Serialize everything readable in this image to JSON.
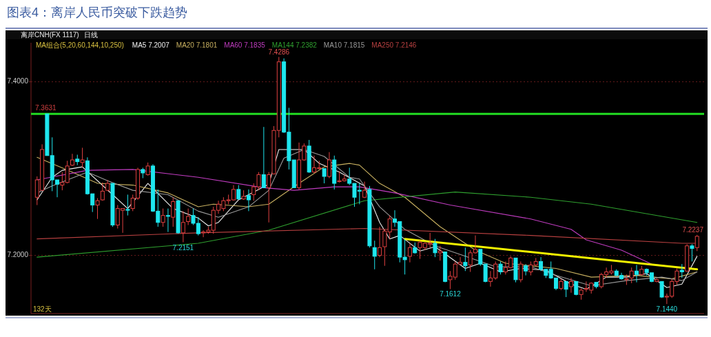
{
  "chart_data": {
    "type": "candlestick",
    "title": "图表4：离岸人民币突破下跌趋势",
    "categories": [
      null,
      null,
      null,
      null,
      null,
      null,
      null,
      null,
      null,
      null,
      null,
      null,
      null,
      null,
      null,
      null,
      null,
      null,
      null,
      null,
      null,
      null,
      null,
      null,
      null,
      null,
      null,
      null,
      null,
      null,
      null,
      null,
      null,
      null,
      null,
      null,
      null,
      null,
      null,
      null,
      null,
      null,
      null,
      null,
      null,
      null,
      null,
      null,
      null,
      null,
      null,
      null,
      null,
      null,
      null,
      null,
      null,
      null,
      null,
      null,
      null,
      null,
      null,
      null,
      null,
      null,
      null,
      null,
      null,
      null,
      null,
      null,
      null,
      null,
      null,
      null,
      null,
      null,
      null,
      null,
      null,
      null,
      null,
      null,
      null,
      null,
      null,
      null,
      null,
      null,
      null,
      null,
      null,
      null,
      null,
      null,
      null,
      null,
      null,
      null,
      null,
      null,
      null,
      null,
      null,
      null,
      null,
      null,
      null,
      null,
      null,
      null,
      null,
      null,
      null,
      null,
      null,
      null,
      null,
      null,
      null,
      null,
      null,
      null,
      null,
      null,
      null,
      null,
      null,
      null,
      null,
      null
    ],
    "ohlc": [
      [
        7.267,
        7.291,
        7.258,
        7.287
      ],
      [
        7.275,
        7.328,
        7.275,
        7.322
      ],
      [
        7.3631,
        7.3631,
        7.315,
        7.315
      ],
      [
        7.315,
        7.336,
        7.274,
        7.287
      ],
      [
        7.287,
        7.287,
        7.267,
        7.282
      ],
      [
        7.281,
        7.296,
        7.275,
        7.284
      ],
      [
        7.284,
        7.309,
        7.283,
        7.303
      ],
      [
        7.304,
        7.317,
        7.303,
        7.31
      ],
      [
        7.311,
        7.316,
        7.304,
        7.308
      ],
      [
        7.307,
        7.324,
        7.301,
        7.31
      ],
      [
        7.309,
        7.313,
        7.27,
        7.271
      ],
      [
        7.271,
        7.271,
        7.25,
        7.258
      ],
      [
        7.258,
        7.266,
        7.242,
        7.263
      ],
      [
        7.264,
        7.284,
        7.263,
        7.274
      ],
      [
        7.275,
        7.287,
        7.274,
        7.283
      ],
      [
        7.283,
        7.283,
        7.233,
        7.235
      ],
      [
        7.235,
        7.258,
        7.231,
        7.254
      ],
      [
        7.252,
        7.254,
        7.226,
        7.254
      ],
      [
        7.253,
        7.27,
        7.246,
        7.252
      ],
      [
        7.254,
        7.27,
        7.251,
        7.266
      ],
      [
        7.266,
        7.301,
        7.264,
        7.299
      ],
      [
        7.299,
        7.301,
        7.289,
        7.295
      ],
      [
        7.293,
        7.307,
        7.292,
        7.303
      ],
      [
        7.303,
        7.305,
        7.25,
        7.251
      ],
      [
        7.251,
        7.276,
        7.233,
        7.238
      ],
      [
        7.238,
        7.254,
        7.233,
        7.246
      ],
      [
        7.246,
        7.254,
        7.227,
        7.245
      ],
      [
        7.244,
        7.267,
        7.233,
        7.262
      ],
      [
        7.263,
        7.263,
        7.225,
        7.226
      ],
      [
        7.226,
        7.251,
        7.2151,
        7.238
      ],
      [
        7.239,
        7.254,
        7.235,
        7.245
      ],
      [
        7.246,
        7.254,
        7.235,
        7.237
      ],
      [
        7.237,
        7.244,
        7.223,
        7.225
      ],
      [
        7.226,
        7.229,
        7.221,
        7.227
      ],
      [
        7.227,
        7.233,
        7.225,
        7.229
      ],
      [
        7.229,
        7.256,
        7.225,
        7.252
      ],
      [
        7.252,
        7.263,
        7.248,
        7.259
      ],
      [
        7.254,
        7.267,
        7.251,
        7.263
      ],
      [
        7.263,
        7.27,
        7.259,
        7.264
      ],
      [
        7.264,
        7.281,
        7.263,
        7.276
      ],
      [
        7.276,
        7.281,
        7.264,
        7.265
      ],
      [
        7.265,
        7.275,
        7.264,
        7.268
      ],
      [
        7.269,
        7.276,
        7.251,
        7.264
      ],
      [
        7.27,
        7.283,
        7.263,
        7.279
      ],
      [
        7.279,
        7.296,
        7.275,
        7.293
      ],
      [
        7.293,
        7.348,
        7.278,
        7.278
      ],
      [
        7.278,
        7.296,
        7.238,
        7.293
      ],
      [
        7.294,
        7.349,
        7.293,
        7.344
      ],
      [
        7.344,
        7.4286,
        7.336,
        7.423
      ],
      [
        7.423,
        7.427,
        7.341,
        7.342
      ],
      [
        7.342,
        7.37,
        7.299,
        7.309
      ],
      [
        7.31,
        7.31,
        7.278,
        7.278
      ],
      [
        7.278,
        7.33,
        7.276,
        7.31
      ],
      [
        7.31,
        7.329,
        7.309,
        7.326
      ],
      [
        7.326,
        7.333,
        7.295,
        7.296
      ],
      [
        7.296,
        7.315,
        7.295,
        7.301
      ],
      [
        7.3,
        7.309,
        7.299,
        7.301
      ],
      [
        7.3,
        7.3,
        7.283,
        7.291
      ],
      [
        7.291,
        7.319,
        7.289,
        7.31
      ],
      [
        7.31,
        7.315,
        7.276,
        7.283
      ],
      [
        7.285,
        7.297,
        7.284,
        7.286
      ],
      [
        7.286,
        7.293,
        7.285,
        7.288
      ],
      [
        7.288,
        7.301,
        7.281,
        7.283
      ],
      [
        7.283,
        7.283,
        7.256,
        7.267
      ],
      [
        7.275,
        7.283,
        7.259,
        7.274
      ],
      [
        7.267,
        7.285,
        7.266,
        7.275
      ],
      [
        7.276,
        7.28,
        7.209,
        7.211
      ],
      [
        7.209,
        7.217,
        7.184,
        7.199
      ],
      [
        7.2,
        7.233,
        7.198,
        7.209
      ],
      [
        7.21,
        7.23,
        7.188,
        7.228
      ],
      [
        7.227,
        7.246,
        7.219,
        7.242
      ],
      [
        7.242,
        7.252,
        7.233,
        7.238
      ],
      [
        7.239,
        7.239,
        7.192,
        7.198
      ],
      [
        7.198,
        7.219,
        7.178,
        7.195
      ],
      [
        7.199,
        7.214,
        7.192,
        7.209
      ],
      [
        7.209,
        7.215,
        7.202,
        7.203
      ],
      [
        7.209,
        7.217,
        7.196,
        7.215
      ],
      [
        7.209,
        7.215,
        7.206,
        7.214
      ],
      [
        7.213,
        7.226,
        7.209,
        7.214
      ],
      [
        7.214,
        7.219,
        7.198,
        7.203
      ],
      [
        7.203,
        7.211,
        7.194,
        7.205
      ],
      [
        7.204,
        7.204,
        7.169,
        7.17
      ],
      [
        7.172,
        7.182,
        7.1612,
        7.176
      ],
      [
        7.175,
        7.193,
        7.172,
        7.19
      ],
      [
        7.19,
        7.198,
        7.189,
        7.192
      ],
      [
        7.192,
        7.209,
        7.182,
        7.188
      ],
      [
        7.189,
        7.206,
        7.181,
        7.203
      ],
      [
        7.203,
        7.223,
        7.202,
        7.207
      ],
      [
        7.207,
        7.207,
        7.188,
        7.19
      ],
      [
        7.19,
        7.19,
        7.169,
        7.17
      ],
      [
        7.17,
        7.182,
        7.164,
        7.174
      ],
      [
        7.174,
        7.193,
        7.172,
        7.19
      ],
      [
        7.19,
        7.193,
        7.178,
        7.181
      ],
      [
        7.181,
        7.193,
        7.178,
        7.186
      ],
      [
        7.186,
        7.199,
        7.185,
        7.197
      ],
      [
        7.197,
        7.197,
        7.169,
        7.172
      ],
      [
        7.172,
        7.193,
        7.169,
        7.19
      ],
      [
        7.188,
        7.19,
        7.177,
        7.182
      ],
      [
        7.181,
        7.193,
        7.177,
        7.189
      ],
      [
        7.189,
        7.197,
        7.188,
        7.193
      ],
      [
        7.193,
        7.198,
        7.182,
        7.184
      ],
      [
        7.184,
        7.184,
        7.174,
        7.177
      ],
      [
        7.184,
        7.193,
        7.173,
        7.174
      ],
      [
        7.174,
        7.174,
        7.16,
        7.162
      ],
      [
        7.162,
        7.173,
        7.16,
        7.17
      ],
      [
        7.17,
        7.17,
        7.152,
        7.161
      ],
      [
        7.164,
        7.174,
        7.157,
        7.17
      ],
      [
        7.17,
        7.17,
        7.154,
        7.155
      ],
      [
        7.155,
        7.162,
        7.149,
        7.16
      ],
      [
        7.161,
        7.17,
        7.158,
        7.162
      ],
      [
        7.16,
        7.169,
        7.156,
        7.168
      ],
      [
        7.169,
        7.169,
        7.162,
        7.164
      ],
      [
        7.164,
        7.18,
        7.162,
        7.178
      ],
      [
        7.178,
        7.186,
        7.174,
        7.181
      ],
      [
        7.18,
        7.189,
        7.178,
        7.182
      ],
      [
        7.182,
        7.184,
        7.176,
        7.177
      ],
      [
        7.177,
        7.18,
        7.172,
        7.173
      ],
      [
        7.172,
        7.178,
        7.166,
        7.173
      ],
      [
        7.174,
        7.186,
        7.168,
        7.182
      ],
      [
        7.182,
        7.189,
        7.169,
        7.178
      ],
      [
        7.178,
        7.188,
        7.177,
        7.184
      ],
      [
        7.184,
        7.185,
        7.177,
        7.18
      ],
      [
        7.18,
        7.18,
        7.169,
        7.17
      ],
      [
        7.17,
        7.174,
        7.169,
        7.172
      ],
      [
        7.17,
        7.17,
        7.151,
        7.152
      ],
      [
        7.152,
        7.156,
        7.144,
        7.153
      ],
      [
        7.153,
        7.173,
        7.151,
        7.17
      ],
      [
        7.17,
        7.185,
        7.166,
        7.182
      ],
      [
        7.183,
        7.19,
        7.174,
        7.181
      ],
      [
        7.182,
        7.213,
        7.181,
        7.211
      ],
      [
        7.211,
        7.213,
        7.193,
        7.208
      ],
      [
        7.209,
        7.2237,
        7.205,
        7.222
      ]
    ],
    "series": [
      {
        "name": "MA5 7.2007",
        "type": "line",
        "color": "#f0f0f0",
        "values": [
          7.264,
          null,
          null,
          7.29,
          null,
          7.298,
          null,
          null,
          null,
          7.302,
          null,
          null,
          7.286,
          null,
          null,
          null,
          null,
          null,
          7.254,
          null,
          null,
          null,
          7.283,
          null,
          null,
          null,
          null,
          7.254,
          null,
          null,
          null,
          null,
          7.243,
          null,
          7.234,
          null,
          7.238,
          null,
          null,
          null,
          7.264,
          null,
          null,
          null,
          null,
          null,
          7.282,
          null,
          7.322,
          null,
          null,
          null,
          null,
          7.322,
          null,
          null,
          7.306,
          null,
          null,
          null,
          7.296,
          null,
          null,
          null,
          null,
          7.28,
          null,
          null,
          7.238,
          null,
          7.219,
          null,
          7.223,
          null,
          null,
          null,
          7.205,
          null,
          null,
          7.21,
          null,
          null,
          null,
          null,
          null,
          7.185,
          null,
          null,
          7.191,
          null,
          null,
          null,
          7.181,
          null,
          null,
          null,
          7.185,
          null,
          null,
          null,
          null,
          7.183,
          null,
          null,
          null,
          null,
          7.167,
          null,
          null,
          7.161,
          null,
          null,
          null,
          7.175,
          null,
          null,
          null,
          7.175,
          null,
          null,
          null,
          7.179,
          null,
          null,
          null,
          7.163,
          null,
          null,
          7.167,
          null,
          null,
          7.199
        ]
      },
      {
        "name": "MA20 7.1801",
        "type": "line",
        "color": "#c8b060",
        "values": [
          7.313,
          null,
          null,
          null,
          null,
          null,
          null,
          7.296,
          null,
          null,
          null,
          null,
          7.283,
          null,
          null,
          null,
          null,
          null,
          null,
          7.281,
          null,
          null,
          null,
          null,
          null,
          null,
          7.272,
          null,
          null,
          null,
          null,
          null,
          7.256,
          null,
          null,
          7.259,
          null,
          null,
          null,
          null,
          null,
          null,
          7.256,
          null,
          null,
          null,
          7.259,
          null,
          null,
          null,
          null,
          null,
          7.283,
          null,
          null,
          null,
          null,
          7.302,
          null,
          null,
          null,
          null,
          7.306,
          null,
          7.304,
          null,
          null,
          null,
          7.283,
          null,
          null,
          null,
          null,
          7.267,
          null,
          null,
          null,
          null,
          null,
          null,
          7.233,
          null,
          null,
          null,
          null,
          null,
          null,
          7.206,
          null,
          null,
          null,
          null,
          null,
          7.191,
          null,
          null,
          null,
          null,
          null,
          null,
          null,
          null,
          null,
          7.185,
          null,
          null,
          null,
          null,
          null,
          null,
          7.175,
          null,
          null,
          null,
          null,
          null,
          null,
          null,
          null,
          7.177,
          null,
          null,
          null,
          null,
          null,
          null,
          7.173,
          null,
          null,
          null,
          null,
          7.181
        ]
      },
      {
        "name": "MA60 7.1835",
        "type": "line",
        "color": "#c03cc0",
        "values": [
          7.287,
          null,
          null,
          null,
          null,
          null,
          null,
          null,
          null,
          null,
          7.298,
          null,
          null,
          null,
          null,
          null,
          null,
          null,
          null,
          7.299,
          null,
          null,
          null,
          null,
          null,
          null,
          null,
          null,
          null,
          null,
          null,
          null,
          7.29,
          null,
          null,
          null,
          null,
          null,
          null,
          null,
          null,
          null,
          null,
          null,
          null,
          7.278,
          null,
          null,
          null,
          null,
          null,
          7.275,
          null,
          null,
          null,
          null,
          null,
          null,
          null,
          7.279,
          null,
          null,
          null,
          null,
          7.279,
          null,
          null,
          null,
          null,
          null,
          null,
          7.272,
          null,
          null,
          null,
          null,
          null,
          null,
          null,
          null,
          null,
          null,
          7.258,
          null,
          null,
          null,
          null,
          null,
          null,
          null,
          null,
          null,
          null,
          null,
          null,
          null,
          null,
          null,
          7.242,
          null,
          null,
          null,
          null,
          null,
          null,
          null,
          7.23,
          null,
          null,
          7.218,
          null,
          null,
          null,
          null,
          null,
          null,
          7.206,
          null,
          null,
          null,
          null,
          null,
          7.19,
          null,
          null,
          null,
          null,
          null,
          null,
          null,
          null,
          7.184
        ]
      },
      {
        "name": "MA144 7.2382",
        "type": "line",
        "color": "#2fa02f",
        "values": [
          7.198,
          null,
          null,
          null,
          null,
          null,
          null,
          null,
          null,
          null,
          null,
          null,
          null,
          null,
          null,
          null,
          null,
          null,
          null,
          null,
          null,
          null,
          null,
          null,
          null,
          null,
          null,
          null,
          null,
          null,
          null,
          null,
          7.214,
          null,
          null,
          null,
          null,
          null,
          null,
          null,
          null,
          null,
          null,
          null,
          null,
          null,
          7.229,
          null,
          null,
          null,
          null,
          null,
          null,
          null,
          null,
          null,
          null,
          null,
          null,
          null,
          null,
          null,
          null,
          null,
          null,
          7.263,
          null,
          null,
          null,
          null,
          null,
          null,
          null,
          null,
          null,
          null,
          null,
          null,
          null,
          null,
          null,
          null,
          null,
          7.273,
          null,
          null,
          null,
          null,
          null,
          null,
          null,
          null,
          null,
          null,
          null,
          null,
          null,
          null,
          7.267,
          null,
          null,
          null,
          null,
          null,
          null,
          null,
          null,
          null,
          null,
          null,
          7.259,
          null,
          null,
          null,
          null,
          null,
          null,
          null,
          null,
          null,
          null,
          null,
          null,
          null,
          null,
          null,
          null,
          null,
          null,
          null,
          null,
          7.238
        ]
      },
      {
        "name": "MA10 7.1815",
        "type": "line",
        "color": "#9a9a9a",
        "values": [
          7.272,
          null,
          null,
          7.28,
          null,
          null,
          null,
          null,
          null,
          null,
          7.296,
          null,
          null,
          null,
          7.286,
          null,
          null,
          null,
          null,
          7.275,
          null,
          null,
          null,
          null,
          null,
          null,
          7.27,
          null,
          null,
          null,
          null,
          null,
          7.251,
          null,
          null,
          null,
          7.244,
          null,
          null,
          null,
          null,
          null,
          7.256,
          null,
          null,
          null,
          7.275,
          null,
          null,
          7.312,
          null,
          null,
          null,
          7.322,
          null,
          null,
          null,
          7.314,
          null,
          null,
          null,
          null,
          7.29,
          null,
          7.288,
          null,
          null,
          null,
          7.256,
          null,
          null,
          null,
          null,
          7.23,
          null,
          null,
          null,
          null,
          null,
          7.211,
          null,
          null,
          null,
          null,
          7.201,
          null,
          null,
          null,
          null,
          null,
          null,
          7.187,
          null,
          null,
          null,
          null,
          null,
          null,
          7.187,
          null,
          null,
          null,
          null,
          7.177,
          null,
          null,
          null,
          null,
          null,
          null,
          7.165,
          null,
          null,
          null,
          null,
          null,
          null,
          7.171,
          null,
          null,
          null,
          null,
          null,
          null,
          7.175,
          null,
          null,
          null,
          7.171,
          null,
          null,
          7.181
        ]
      },
      {
        "name": "MA250 7.2146",
        "type": "line",
        "color": "#b84040",
        "values": [
          7.219,
          null,
          null,
          null,
          null,
          null,
          null,
          null,
          null,
          null,
          null,
          null,
          null,
          null,
          null,
          null,
          null,
          null,
          null,
          null,
          null,
          null,
          null,
          null,
          null,
          null,
          null,
          null,
          null,
          null,
          null,
          null,
          7.226,
          null,
          null,
          null,
          null,
          null,
          null,
          null,
          null,
          null,
          null,
          null,
          null,
          null,
          null,
          null,
          null,
          null,
          null,
          null,
          null,
          null,
          null,
          null,
          null,
          null,
          null,
          null,
          null,
          null,
          null,
          null,
          null,
          7.231,
          null,
          null,
          null,
          null,
          null,
          null,
          null,
          null,
          null,
          null,
          null,
          null,
          null,
          null,
          null,
          null,
          null,
          null,
          null,
          null,
          null,
          null,
          null,
          null,
          null,
          null,
          null,
          null,
          null,
          null,
          null,
          null,
          7.223,
          null,
          null,
          null,
          null,
          null,
          null,
          null,
          null,
          null,
          null,
          null,
          null,
          null,
          null,
          null,
          null,
          null,
          null,
          null,
          null,
          null,
          null,
          null,
          null,
          null,
          null,
          null,
          null,
          null,
          7.214,
          null,
          null,
          7.214
        ]
      },
      {
        "type": "line",
        "color": "#f2f200",
        "values": [
          null,
          null,
          null,
          null,
          null,
          null,
          null,
          null,
          null,
          null,
          null,
          null,
          null,
          null,
          null,
          null,
          null,
          null,
          null,
          null,
          null,
          null,
          null,
          null,
          null,
          null,
          null,
          null,
          null,
          null,
          null,
          null,
          null,
          null,
          null,
          null,
          null,
          null,
          null,
          null,
          null,
          null,
          null,
          null,
          null,
          null,
          null,
          null,
          null,
          null,
          null,
          null,
          null,
          null,
          null,
          null,
          null,
          null,
          null,
          null,
          null,
          null,
          null,
          null,
          null,
          null,
          null,
          null,
          null,
          null,
          null,
          null,
          null,
          7.219,
          null,
          null,
          null,
          null,
          null,
          null,
          null,
          null,
          null,
          null,
          null,
          null,
          null,
          null,
          null,
          null,
          null,
          null,
          null,
          null,
          null,
          null,
          null,
          null,
          null,
          null,
          null,
          null,
          null,
          null,
          null,
          null,
          null,
          null,
          null,
          null,
          null,
          null,
          null,
          null,
          null,
          null,
          null,
          null,
          null,
          null,
          null,
          null,
          null,
          null,
          null,
          null,
          null,
          null,
          null,
          null,
          null,
          7.184
        ]
      }
    ],
    "ref_lines": [
      {
        "axis": "y",
        "value": 7.3631,
        "label": "7.3631",
        "color": "#22dd22"
      }
    ],
    "annotations": [
      "离岸CNH(FX 1117)",
      "日线",
      "MA组合(5,20,60,144,10,250)",
      "132天",
      {
        "text": "7.4286",
        "y": 7.4286
      },
      {
        "text": "7.2151",
        "y": 7.2151
      },
      {
        "text": "7.1612",
        "y": 7.1612
      },
      {
        "text": "7.1440",
        "y": 7.144
      },
      {
        "text": "7.2237",
        "y": 7.2237
      }
    ],
    "ylim": [
      7.133,
      7.445
    ],
    "yticks": [
      {
        "value": 7.4,
        "label": "7.4000"
      },
      {
        "value": 7.2,
        "label": "7.2000"
      }
    ],
    "grid": "y",
    "legend": "top left",
    "tick_labels": "y"
  }
}
